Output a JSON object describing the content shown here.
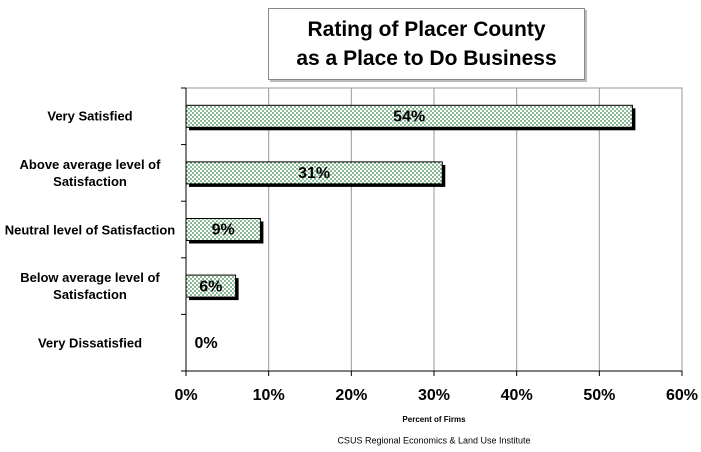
{
  "chart_data": {
    "type": "bar",
    "orientation": "horizontal",
    "title": [
      "Rating of Placer County",
      "as a Place to Do Business"
    ],
    "categories": [
      "Very Satisfied",
      "Above average level of Satisfaction",
      "Neutral level of Satisfaction",
      "Below average level of Satisfaction",
      "Very Dissatisfied"
    ],
    "values": [
      54,
      31,
      9,
      6,
      0
    ],
    "value_labels": [
      "54%",
      "31%",
      "9%",
      "6%",
      "0%"
    ],
    "color": "#c8e6c8",
    "xlim": [
      0,
      60
    ],
    "xticks": [
      {
        "value": 0,
        "label": "0%"
      },
      {
        "value": 10,
        "label": "10%"
      },
      {
        "value": 20,
        "label": "20%"
      },
      {
        "value": 30,
        "label": "30%"
      },
      {
        "value": 40,
        "label": "40%"
      },
      {
        "value": 50,
        "label": "50%"
      },
      {
        "value": 60,
        "label": "60%"
      }
    ],
    "xlabel": "Percent of Firms",
    "source": "CSUS Regional Economics & Land Use Institute",
    "grid": true
  }
}
